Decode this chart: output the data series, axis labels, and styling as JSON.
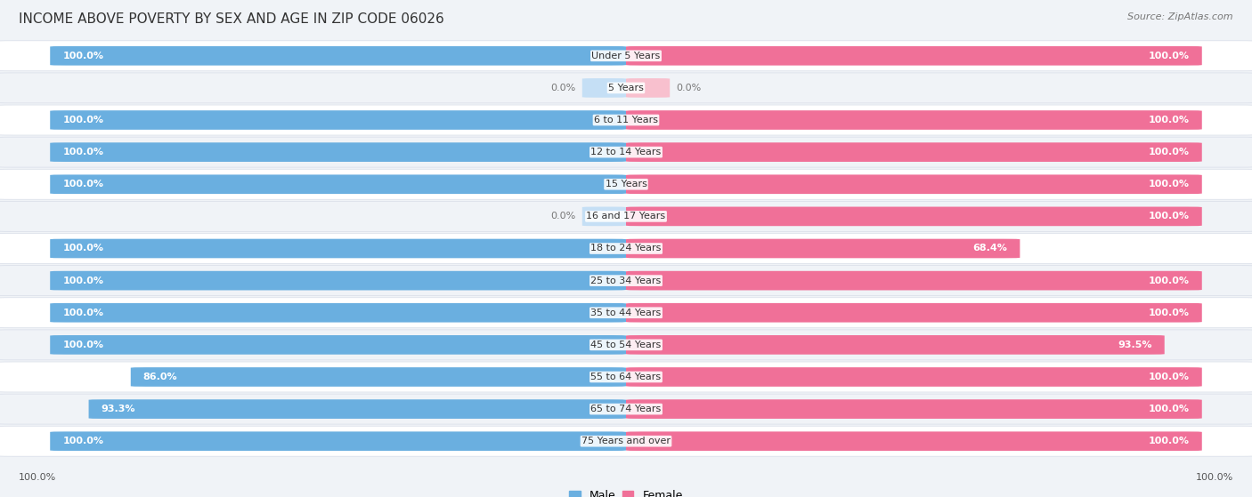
{
  "title": "INCOME ABOVE POVERTY BY SEX AND AGE IN ZIP CODE 06026",
  "source": "Source: ZipAtlas.com",
  "categories": [
    "Under 5 Years",
    "5 Years",
    "6 to 11 Years",
    "12 to 14 Years",
    "15 Years",
    "16 and 17 Years",
    "18 to 24 Years",
    "25 to 34 Years",
    "35 to 44 Years",
    "45 to 54 Years",
    "55 to 64 Years",
    "65 to 74 Years",
    "75 Years and over"
  ],
  "male_values": [
    100.0,
    0.0,
    100.0,
    100.0,
    100.0,
    0.0,
    100.0,
    100.0,
    100.0,
    100.0,
    86.0,
    93.3,
    100.0
  ],
  "female_values": [
    100.0,
    0.0,
    100.0,
    100.0,
    100.0,
    100.0,
    68.4,
    100.0,
    100.0,
    93.5,
    100.0,
    100.0,
    100.0
  ],
  "male_color": "#6aafe0",
  "female_color": "#f07098",
  "male_light_color": "#c5dff5",
  "female_light_color": "#f8c0ce",
  "row_colors_odd": "#f0f3f7",
  "row_colors_even": "#ffffff",
  "row_border_color": "#d8dde8",
  "title_fontsize": 11,
  "label_fontsize": 8,
  "value_fontsize": 8,
  "source_fontsize": 8,
  "figsize": [
    14.06,
    5.59
  ]
}
